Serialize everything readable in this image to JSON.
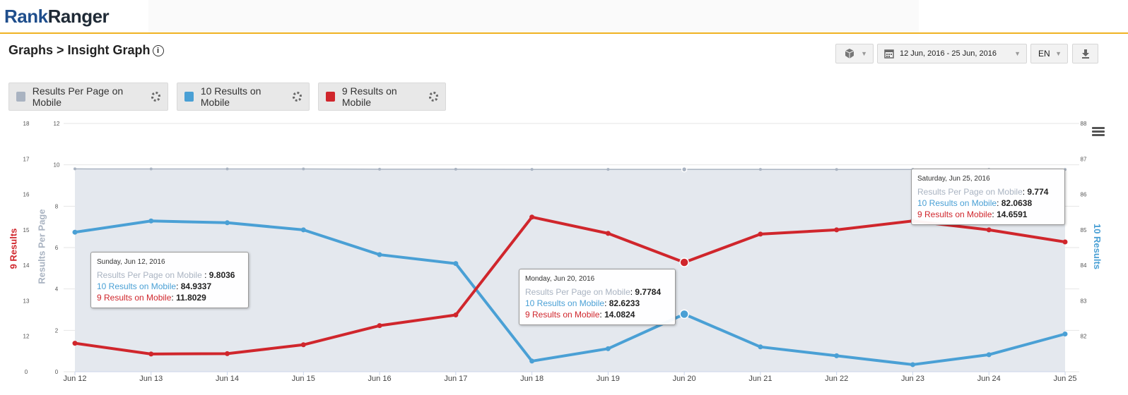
{
  "brand": {
    "rank": "Rank",
    "ranger": "Ranger"
  },
  "page": {
    "breadcrumb": "Graphs > Insight Graph"
  },
  "controls": {
    "date_range": "12 Jun, 2016 - 25 Jun, 2016",
    "language": "EN"
  },
  "icons": {
    "cube": "cube-icon",
    "calendar": "calendar-icon",
    "download": "download-arrow-icon",
    "settings": "gear-icon",
    "menu": "hamburger-menu-icon",
    "info": "info-icon"
  },
  "legend": [
    {
      "label": "Results Per Page on Mobile",
      "color": "#a9b3c1"
    },
    {
      "label": "10 Results on Mobile",
      "color": "#4aa0d5"
    },
    {
      "label": "9 Results on Mobile",
      "color": "#d0262c"
    }
  ],
  "chart_data": {
    "type": "line",
    "categories": [
      "Jun 12",
      "Jun 13",
      "Jun 14",
      "Jun 15",
      "Jun 16",
      "Jun 17",
      "Jun 18",
      "Jun 19",
      "Jun 20",
      "Jun 21",
      "Jun 22",
      "Jun 23",
      "Jun 24",
      "Jun 25"
    ],
    "axes": {
      "left_outer": {
        "title": "9 Results",
        "min": 11,
        "max": 18,
        "ticks": [
          "12",
          "13",
          "14",
          "15",
          "16",
          "17",
          "18"
        ],
        "first_label": "0",
        "color": "#d0262c"
      },
      "left_inner": {
        "title": "Results Per Page",
        "min": 0,
        "max": 12,
        "ticks": [
          "0",
          "2",
          "4",
          "6",
          "8",
          "10",
          "12"
        ],
        "color": "#a9b3c1"
      },
      "right": {
        "title": "10 Results",
        "min": 81,
        "max": 88,
        "ticks": [
          "82",
          "83",
          "84",
          "85",
          "86",
          "87",
          "88"
        ],
        "color": "#4aa0d5"
      }
    },
    "series": [
      {
        "name": "Results Per Page on Mobile",
        "axis": "left_inner",
        "color": "#a9b3c1",
        "area": true,
        "values": [
          9.8036,
          9.8,
          9.8,
          9.8,
          9.79,
          9.79,
          9.78,
          9.78,
          9.7784,
          9.78,
          9.776,
          9.775,
          9.774,
          9.774
        ]
      },
      {
        "name": "10 Results on Mobile",
        "axis": "right",
        "color": "#4aa0d5",
        "values": [
          84.9337,
          85.25,
          85.2,
          85.0,
          84.3,
          84.05,
          81.3,
          81.65,
          82.6233,
          81.7,
          81.45,
          81.2,
          81.48,
          82.0638
        ]
      },
      {
        "name": "9 Results on Mobile",
        "axis": "left_outer",
        "color": "#d0262c",
        "values": [
          11.8029,
          11.5,
          11.51,
          11.76,
          12.3,
          12.6,
          15.36,
          14.9,
          14.0824,
          14.88,
          15.0,
          15.25,
          15.0,
          14.6591
        ]
      }
    ],
    "highlighted": [
      0,
      8,
      13
    ]
  },
  "tooltips": [
    {
      "date": "Sunday, Jun 12, 2016",
      "rpp_label": "Results Per Page on Mobile",
      "rpp": "9.8036",
      "r10_label": "10 Results on Mobile",
      "r10": "84.9337",
      "r9_label": "9 Results on Mobile",
      "r9": "11.8029"
    },
    {
      "date": "Monday, Jun 20, 2016",
      "rpp_label": "Results Per Page on Mobile",
      "rpp": "9.7784",
      "r10_label": "10 Results on Mobile",
      "r10": "82.6233",
      "r9_label": "9 Results on Mobile",
      "r9": "14.0824"
    },
    {
      "date": "Saturday, Jun 25, 2016",
      "rpp_label": "Results Per Page on Mobile",
      "rpp": "9.774",
      "r10_label": "10 Results on Mobile",
      "r10": "82.0638",
      "r9_label": "9 Results on Mobile",
      "r9": "14.6591"
    }
  ]
}
